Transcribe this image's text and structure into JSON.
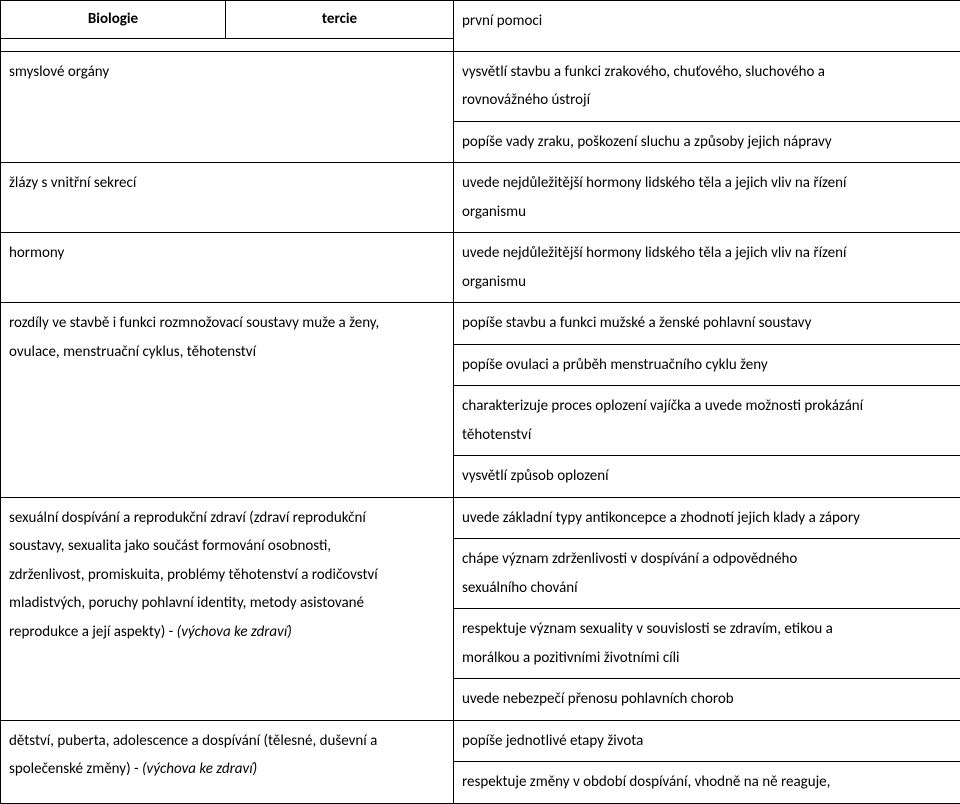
{
  "header": {
    "subject": "Biologie",
    "level": "tercie"
  },
  "rows": [
    {
      "left": "",
      "right": "první pomoci"
    },
    {
      "left": "smyslové orgány",
      "right_lines": [
        "vysvětlí stavbu a funkci zrakového, chuťového, sluchového a",
        "rovnovážného ústrojí"
      ]
    },
    {
      "left": "",
      "right": "popíše vady zraku, poškození sluchu a způsoby jejich nápravy"
    },
    {
      "left": "žlázy s vnitřní sekrecí",
      "right_lines": [
        "uvede nejdůležitější hormony lidského těla a jejich vliv na řízení",
        "organismu"
      ]
    },
    {
      "left": "hormony",
      "right_lines": [
        "uvede nejdůležitější hormony lidského těla a jejich vliv na řízení",
        "organismu"
      ]
    },
    {
      "left_lines": [
        "rozdíly ve stavbě i funkci rozmnožovací soustavy muže a ženy,",
        "ovulace, menstruační cyklus, těhotenství"
      ],
      "rights": [
        "popíše stavbu a funkci mužské a ženské pohlavní soustavy",
        "popíše ovulaci a průběh menstruačního cyklu ženy",
        [
          "charakterizuje proces oplození vajíčka a uvede možnosti prokázání",
          "těhotenství"
        ],
        "vysvětlí způsob oplození"
      ]
    },
    {
      "left_norm": "sexuální dospívání a reprodukční zdraví (zdraví reprodukční",
      "left_lines2": [
        "soustavy, sexualita jako součást formování osobnosti,",
        "zdrženlivost, promiskuita, problémy těhotenství a rodičovství",
        "mladistvých, poruchy pohlavní identity, metody asistované"
      ],
      "left_tail": "reprodukce a její aspekty) - ",
      "left_italic": "(výchova ke zdraví)",
      "rights": [
        "uvede základní typy antikoncepce a zhodnotí jejich klady a zápory",
        [
          "chápe význam zdrženlivosti v dospívání a odpovědného",
          "sexuálního chování"
        ],
        [
          "respektuje význam sexuality v souvislosti se zdravím, etikou a",
          "morálkou a pozitivními životními cíli"
        ],
        "uvede nebezpečí přenosu pohlavních chorob"
      ]
    },
    {
      "left_norm_lines": [
        "dětství, puberta, adolescence a dospívání (tělesné, duševní a"
      ],
      "left_tail": "společenské změny) - ",
      "left_italic": "(výchova ke zdraví)",
      "rights": [
        "popíše jednotlivé etapy života",
        "respektuje změny v období dospívání, vhodně na ně reaguje,"
      ]
    }
  ]
}
